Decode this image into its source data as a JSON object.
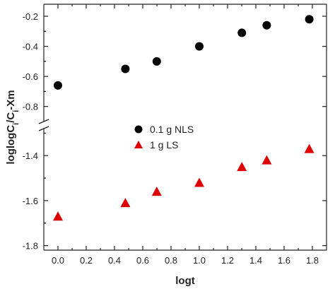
{
  "chart_data": {
    "type": "scatter",
    "title": "",
    "xlabel": "logt",
    "ylabel": {
      "parts": [
        {
          "text": "loglogC",
          "sub": false
        },
        {
          "text": "i",
          "sub": true
        },
        {
          "text": "/C",
          "sub": false
        },
        {
          "text": "i",
          "sub": true
        },
        {
          "text": "-Xm",
          "sub": false
        }
      ]
    },
    "xlim": [
      -0.1,
      1.9
    ],
    "x_ticks": [
      "0.0",
      "0.2",
      "0.4",
      "0.6",
      "0.8",
      "1.0",
      "1.2",
      "1.4",
      "1.6",
      "1.8"
    ],
    "y_axis_break": true,
    "y_upper": {
      "ylim": [
        -0.9,
        -0.12
      ],
      "ticks": [
        "-0.2",
        "-0.4",
        "-0.6",
        "-0.8"
      ]
    },
    "y_lower": {
      "ylim": [
        -1.82,
        -1.28
      ],
      "ticks": [
        "-1.4",
        "-1.6",
        "-1.8"
      ]
    },
    "legend_placement": "center-right",
    "series": [
      {
        "name": "0.1 g NLS",
        "marker": "circle",
        "color": "#000000",
        "panel": "upper",
        "x": [
          0.0,
          0.477,
          0.699,
          1.0,
          1.301,
          1.477,
          1.778
        ],
        "y": [
          -0.66,
          -0.55,
          -0.5,
          -0.4,
          -0.31,
          -0.26,
          -0.22
        ]
      },
      {
        "name": "1 g LS",
        "marker": "triangle",
        "color": "#dd0000",
        "panel": "lower",
        "x": [
          0.0,
          0.477,
          0.699,
          1.0,
          1.301,
          1.477,
          1.778
        ],
        "y": [
          -1.67,
          -1.61,
          -1.56,
          -1.52,
          -1.45,
          -1.42,
          -1.37
        ]
      }
    ]
  }
}
